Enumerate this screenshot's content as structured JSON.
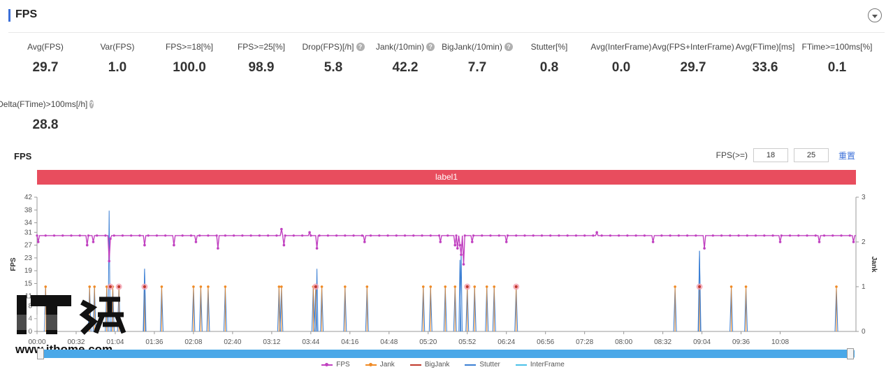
{
  "header": {
    "title": "FPS"
  },
  "metrics": [
    {
      "label": "Avg(FPS)",
      "value": "29.7",
      "help": false
    },
    {
      "label": "Var(FPS)",
      "value": "1.0",
      "help": false
    },
    {
      "label": "FPS>=18[%]",
      "value": "100.0",
      "help": false
    },
    {
      "label": "FPS>=25[%]",
      "value": "98.9",
      "help": false
    },
    {
      "label": "Drop(FPS)[/h]",
      "value": "5.8",
      "help": true
    },
    {
      "label": "Jank(/10min)",
      "value": "42.2",
      "help": true
    },
    {
      "label": "BigJank(/10min)",
      "value": "7.7",
      "help": true
    },
    {
      "label": "Stutter[%]",
      "value": "0.8",
      "help": false
    },
    {
      "label": "Avg(InterFrame)",
      "value": "0.0",
      "help": false
    },
    {
      "label": "Avg(FPS+InterFrame)",
      "value": "29.7",
      "help": false
    },
    {
      "label": "Avg(FTime)[ms]",
      "value": "33.6",
      "help": false
    },
    {
      "label": "FTime>=100ms[%]",
      "value": "0.1",
      "help": false
    },
    {
      "label": "Delta(FTime)>100ms[/h]",
      "value": "28.8",
      "help": true
    }
  ],
  "chart_section": {
    "title": "FPS",
    "filter_label": "FPS(>=)",
    "filter_value_1": "18",
    "filter_value_2": "25",
    "reset_label": "重置",
    "label_bar": "label1"
  },
  "watermark": {
    "text": "www.ithome.com",
    "logo": "IT之家"
  },
  "colors": {
    "fps": "#c040c0",
    "jank": "#f08a24",
    "bigjank": "#c0392b",
    "stutter": "#3b7fd4",
    "interframe": "#4ac0e8",
    "label_bar": "#e84d5e"
  },
  "chart_data": {
    "type": "line",
    "xlabel": "",
    "ylabel": "FPS",
    "y2label": "Jank",
    "ylim": [
      0,
      42
    ],
    "y2lim": [
      0,
      3
    ],
    "yticks": [
      0,
      4,
      8,
      11,
      15,
      19,
      23,
      27,
      31,
      34,
      38,
      42
    ],
    "y2ticks": [
      0,
      1,
      2,
      3
    ],
    "x_range_seconds": [
      0,
      670
    ],
    "xticks": [
      "00:00",
      "00:32",
      "01:04",
      "01:36",
      "02:08",
      "02:40",
      "03:12",
      "03:44",
      "04:16",
      "04:48",
      "05:20",
      "05:52",
      "06:24",
      "06:56",
      "07:28",
      "08:00",
      "08:32",
      "09:04",
      "09:36",
      "10:08"
    ],
    "fps_baseline": 30,
    "fps_dips": [
      {
        "t": 1,
        "fps": 28
      },
      {
        "t": 41,
        "fps": 27
      },
      {
        "t": 46,
        "fps": 28
      },
      {
        "t": 59,
        "fps": 22
      },
      {
        "t": 60,
        "fps": 29
      },
      {
        "t": 88,
        "fps": 27
      },
      {
        "t": 112,
        "fps": 27
      },
      {
        "t": 130,
        "fps": 28
      },
      {
        "t": 148,
        "fps": 26
      },
      {
        "t": 200,
        "fps": 32
      },
      {
        "t": 202,
        "fps": 27
      },
      {
        "t": 223,
        "fps": 31
      },
      {
        "t": 229,
        "fps": 26
      },
      {
        "t": 268,
        "fps": 28
      },
      {
        "t": 330,
        "fps": 28
      },
      {
        "t": 342,
        "fps": 27
      },
      {
        "t": 344,
        "fps": 26
      },
      {
        "t": 346,
        "fps": 27
      },
      {
        "t": 347,
        "fps": 24
      },
      {
        "t": 349,
        "fps": 21
      },
      {
        "t": 356,
        "fps": 28
      },
      {
        "t": 384,
        "fps": 28
      },
      {
        "t": 458,
        "fps": 31
      },
      {
        "t": 504,
        "fps": 28
      },
      {
        "t": 546,
        "fps": 26
      },
      {
        "t": 608,
        "fps": 28
      },
      {
        "t": 640,
        "fps": 28
      },
      {
        "t": 668,
        "fps": 28
      }
    ],
    "jank_t": [
      7,
      43,
      47,
      57,
      62,
      67,
      88,
      102,
      128,
      134,
      140,
      154,
      198,
      200,
      226,
      228,
      233,
      252,
      270,
      316,
      322,
      334,
      342,
      352,
      358,
      368,
      374,
      392,
      522,
      542,
      568,
      580,
      654
    ],
    "bigjank_t": [
      60,
      67,
      88,
      228,
      352,
      392,
      542
    ],
    "stutter_spikes": [
      {
        "t": 59,
        "v": 2.7
      },
      {
        "t": 88,
        "v": 1.4
      },
      {
        "t": 229,
        "v": 1.4
      },
      {
        "t": 346,
        "v": 1.6
      },
      {
        "t": 347,
        "v": 1.8
      },
      {
        "t": 542,
        "v": 1.8
      }
    ],
    "legend": [
      "FPS",
      "Jank",
      "BigJank",
      "Stutter",
      "InterFrame"
    ]
  }
}
